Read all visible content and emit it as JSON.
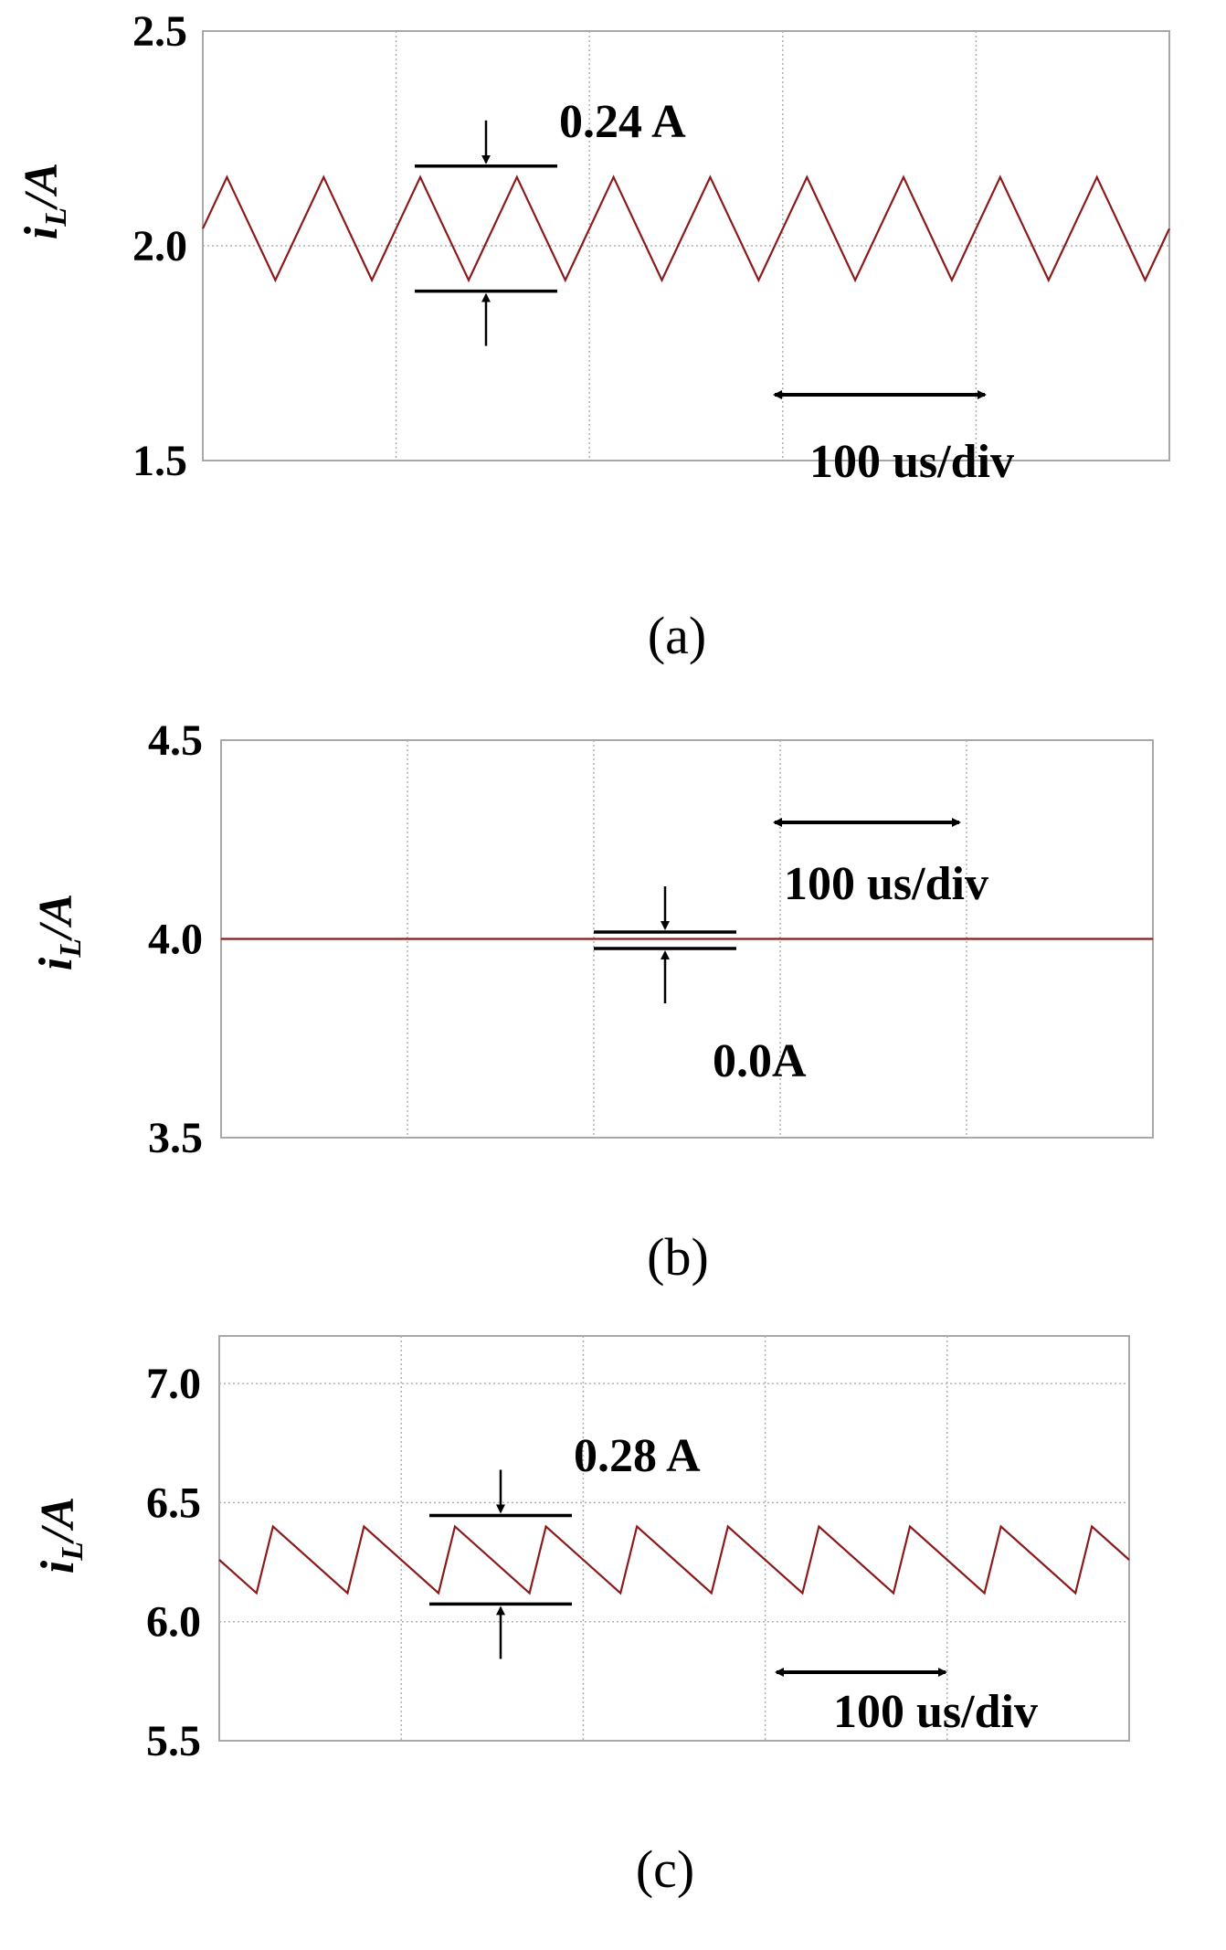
{
  "chart_data": [
    {
      "type": "line",
      "panel": "a",
      "caption": "(a)",
      "ylabel": {
        "main": "i",
        "sub": "L",
        "rest": "/A"
      },
      "ylim": [
        1.5,
        2.5
      ],
      "yticks": [
        "1.5",
        "2.0",
        "2.5"
      ],
      "x_divisions": 5,
      "grid": true,
      "time_scale": "100 us/div",
      "ripple_label": "0.24 A",
      "waveform": {
        "shape": "triangle",
        "min": 1.92,
        "max": 2.16,
        "period_div": 0.5,
        "start_value": 2.04,
        "start_phase": "rising"
      },
      "series": [
        {
          "color": "#8b1a1a"
        }
      ]
    },
    {
      "type": "line",
      "panel": "b",
      "caption": "(b)",
      "ylabel": {
        "main": "i",
        "sub": "L",
        "rest": "/A"
      },
      "ylim": [
        3.5,
        4.5
      ],
      "yticks": [
        "3.5",
        "4.0",
        "4.5"
      ],
      "x_divisions": 5,
      "grid": true,
      "time_scale": "100 us/div",
      "ripple_label": "0.0A",
      "waveform": {
        "shape": "flat",
        "value": 4.0
      },
      "series": [
        {
          "color": "#8b1a1a"
        }
      ]
    },
    {
      "type": "line",
      "panel": "c",
      "caption": "(c)",
      "ylabel": {
        "main": "i",
        "sub": "L",
        "rest": "/A"
      },
      "ylim": [
        5.5,
        7.2
      ],
      "yticks": [
        "5.5",
        "6.0",
        "6.5",
        "7.0"
      ],
      "x_divisions": 5,
      "grid": true,
      "time_scale": "100 us/div",
      "ripple_label": "0.28 A",
      "waveform": {
        "shape": "sawtooth",
        "min": 6.12,
        "max": 6.4,
        "period_div": 0.5,
        "start_value": 6.26,
        "start_phase": "falling"
      },
      "series": [
        {
          "color": "#8b1a1a"
        }
      ]
    }
  ]
}
